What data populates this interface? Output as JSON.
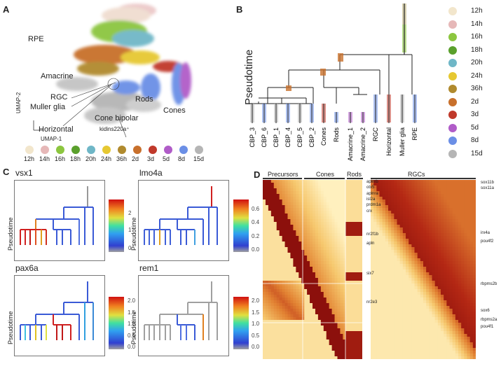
{
  "panels": {
    "A": "A",
    "B": "B",
    "C": "C",
    "D": "D"
  },
  "umap": {
    "labels": [
      "RPE",
      "Amacrine",
      "RGC",
      "Muller glia",
      "Horizontal",
      "Rods",
      "Cone bipolar",
      "Cones",
      "kidins220a⁺"
    ],
    "xaxis": "UMAP-1",
    "yaxis": "UMAP-2"
  },
  "timepoints": [
    "12h",
    "14h",
    "16h",
    "18h",
    "20h",
    "24h",
    "36h",
    "2d",
    "3d",
    "5d",
    "8d",
    "15d"
  ],
  "timepoint_colors": [
    "#f2e6cc",
    "#e6b8b8",
    "#8cc63f",
    "#5aa02c",
    "#6fb7c7",
    "#e6c832",
    "#b08a2e",
    "#c8702c",
    "#c0392b",
    "#b05cc8",
    "#6b8fe6",
    "#b5b5b5"
  ],
  "tree": {
    "yaxis": "Pseudotime",
    "leaves": [
      "CBP_3",
      "CBP_6",
      "CBP_1",
      "CBP_4",
      "CBP_5",
      "CBP_2",
      "Cones",
      "Rods",
      "Amacrine_1",
      "Amacrine_2",
      "RGC",
      "Horizontal",
      "Muller glia",
      "RPE"
    ]
  },
  "genes": {
    "g1": {
      "name": "vsx1",
      "ticks": [
        "2",
        "1",
        "0"
      ]
    },
    "g2": {
      "name": "lmo4a",
      "ticks": [
        "0.6",
        "0.4",
        "0.2",
        "0.0"
      ]
    },
    "g3": {
      "name": "pax6a",
      "ticks": [
        "2.0",
        "1.5",
        "1.0",
        "0.5",
        "0.0"
      ]
    },
    "g4": {
      "name": "rem1",
      "ticks": [
        "2.0",
        "1.5",
        "1.0",
        "0.5",
        "0.0"
      ]
    },
    "ylabel": "Pseudotime"
  },
  "heatmap": {
    "groups": [
      "Precursors",
      "Cones",
      "Rods"
    ],
    "right_group": "RGCs",
    "left_genes": [
      "aplnrb",
      "otx5",
      "aplnra",
      "isl2a",
      "prdm1a",
      "crx",
      "nr2f1b",
      "apln",
      "six7",
      "nr2e3"
    ],
    "right_genes": [
      "sox11b",
      "sox11a",
      "irx4a",
      "pou4f2",
      "rbpms2b",
      "sox6",
      "rbpms2a",
      "pou4f1"
    ]
  }
}
